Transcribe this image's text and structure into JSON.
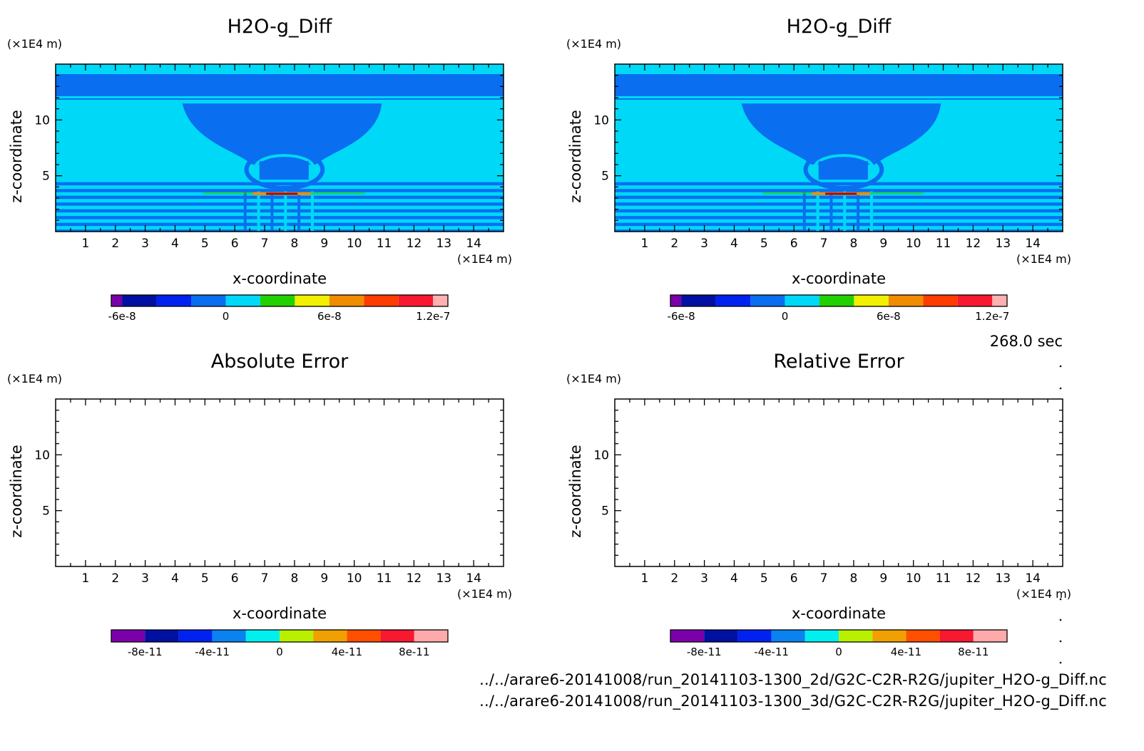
{
  "time_label": "268.0 sec",
  "files": [
    "../../arare6-20141008/run_20141103-1300_2d/G2C-C2R-R2G/jupiter_H2O-g_Diff.nc",
    "../../arare6-20141008/run_20141103-1300_3d/G2C-C2R-R2G/jupiter_H2O-g_Diff.nc"
  ],
  "chart_data": [
    {
      "type": "heatmap",
      "title": "H2O-g_Diff",
      "xlabel": "x-coordinate",
      "ylabel": "z-coordinate",
      "x_unit": "(×1E4 m)",
      "y_unit": "(×1E4 m)",
      "xlim": [
        0,
        15
      ],
      "ylim": [
        0,
        15
      ],
      "x_ticks": [
        1,
        2,
        3,
        4,
        5,
        6,
        7,
        8,
        9,
        10,
        11,
        12,
        13,
        14
      ],
      "y_ticks": [
        5,
        10
      ],
      "field": "filled",
      "colorbar": {
        "colors": [
          "#7b00aa",
          "#0010a0",
          "#0022f0",
          "#0a6ef0",
          "#00d8f8",
          "#22d000",
          "#f0f000",
          "#f08c00",
          "#ff3c00",
          "#f81830",
          "#ffb0b0"
        ],
        "tick_labels": [
          "-6e-8",
          "0",
          "6e-8",
          "1.2e-7"
        ]
      }
    },
    {
      "type": "heatmap",
      "title": "H2O-g_Diff",
      "xlabel": "x-coordinate",
      "ylabel": "z-coordinate",
      "x_unit": "(×1E4 m)",
      "y_unit": "(×1E4 m)",
      "xlim": [
        0,
        15
      ],
      "ylim": [
        0,
        15
      ],
      "x_ticks": [
        1,
        2,
        3,
        4,
        5,
        6,
        7,
        8,
        9,
        10,
        11,
        12,
        13,
        14
      ],
      "y_ticks": [
        5,
        10
      ],
      "field": "filled",
      "colorbar": {
        "colors": [
          "#7b00aa",
          "#0010a0",
          "#0022f0",
          "#0a6ef0",
          "#00d8f8",
          "#22d000",
          "#f0f000",
          "#f08c00",
          "#ff3c00",
          "#f81830",
          "#ffb0b0"
        ],
        "tick_labels": [
          "-6e-8",
          "0",
          "6e-8",
          "1.2e-7"
        ]
      }
    },
    {
      "type": "heatmap",
      "title": "Absolute Error",
      "xlabel": "x-coordinate",
      "ylabel": "z-coordinate",
      "x_unit": "(×1E4 m)",
      "y_unit": "(×1E4 m)",
      "xlim": [
        0,
        15
      ],
      "ylim": [
        0,
        15
      ],
      "x_ticks": [
        1,
        2,
        3,
        4,
        5,
        6,
        7,
        8,
        9,
        10,
        11,
        12,
        13,
        14
      ],
      "y_ticks": [
        5,
        10
      ],
      "field": "empty",
      "colorbar": {
        "colors": [
          "#7b00aa",
          "#0010a0",
          "#0022f0",
          "#0a82f0",
          "#00f0f0",
          "#b8f000",
          "#f0a000",
          "#ff5000",
          "#f81830",
          "#ffaaaa"
        ],
        "tick_labels": [
          "-8e-11",
          "-4e-11",
          "0",
          "4e-11",
          "8e-11"
        ]
      }
    },
    {
      "type": "heatmap",
      "title": "Relative Error",
      "xlabel": "x-coordinate",
      "ylabel": "z-coordinate",
      "x_unit": "(×1E4 m)",
      "y_unit": "(×1E4 m)",
      "xlim": [
        0,
        15
      ],
      "ylim": [
        0,
        15
      ],
      "x_ticks": [
        1,
        2,
        3,
        4,
        5,
        6,
        7,
        8,
        9,
        10,
        11,
        12,
        13,
        14
      ],
      "y_ticks": [
        5,
        10
      ],
      "field": "empty",
      "colorbar": {
        "colors": [
          "#7b00aa",
          "#0010a0",
          "#0022f0",
          "#0a82f0",
          "#00f0f0",
          "#b8f000",
          "#f0a000",
          "#ff5000",
          "#f81830",
          "#ffaaaa"
        ],
        "tick_labels": [
          "-8e-11",
          "-4e-11",
          "0",
          "4e-11",
          "8e-11"
        ]
      }
    }
  ]
}
